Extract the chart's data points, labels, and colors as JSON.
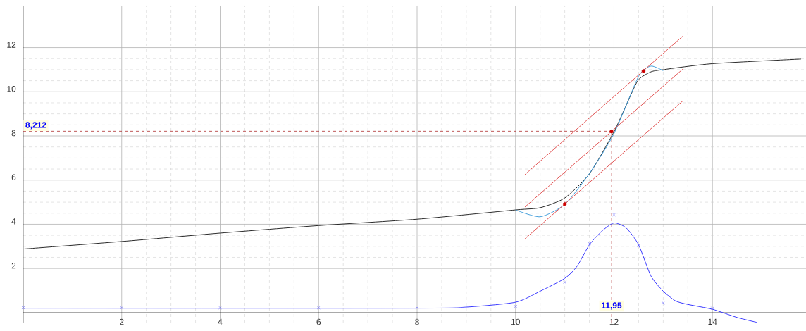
{
  "chart_data": {
    "type": "line",
    "xlim": [
      0,
      15.9
    ],
    "ylim": [
      -0.45,
      13.9
    ],
    "xticks": [
      2,
      4,
      6,
      8,
      10,
      12,
      14
    ],
    "yticks": [
      2,
      4,
      6,
      8,
      10,
      12
    ],
    "grid": true,
    "series": [
      {
        "color": "#1a1a1a",
        "marker": "none",
        "x": [
          0,
          2,
          4,
          6,
          8,
          10,
          10.5,
          11,
          11.5,
          12,
          12.33,
          12.5,
          12.75,
          13,
          14,
          15.8
        ],
        "values": [
          2.88,
          3.22,
          3.6,
          3.94,
          4.23,
          4.65,
          4.75,
          5.19,
          6.28,
          8.19,
          9.8,
          10.55,
          10.9,
          11.0,
          11.27,
          11.48
        ]
      },
      {
        "color": "#3a9ad9",
        "marker": "none",
        "x": [
          10,
          10.5,
          11,
          11.5,
          12,
          12.5,
          12.75,
          13
        ],
        "values": [
          4.65,
          4.34,
          4.9,
          6.3,
          8.1,
          10.7,
          11.16,
          10.95
        ]
      },
      {
        "color": "#2b2bff",
        "marker": "none",
        "x": [
          0,
          8,
          9,
          10,
          10.5,
          11,
          11.25,
          11.5,
          11.75,
          12,
          12.25,
          12.5,
          12.75,
          13,
          13.25,
          13.5,
          14,
          14.5,
          14.9
        ],
        "values": [
          0.2,
          0.2,
          0.25,
          0.47,
          0.97,
          1.55,
          2.1,
          3.07,
          3.68,
          4.06,
          3.83,
          3.07,
          1.66,
          0.97,
          0.53,
          0.37,
          0.15,
          -0.22,
          -0.44
        ]
      },
      {
        "type": "scatter",
        "color": "#5555ff",
        "marker": "cross",
        "x": [
          0,
          2,
          4,
          6,
          8,
          10,
          11,
          11.5,
          12,
          12.5,
          13,
          14
        ],
        "values": [
          0.22,
          0.22,
          0.22,
          0.22,
          0.22,
          0.28,
          1.37,
          3.13,
          4.43,
          3.04,
          0.44,
          0.2
        ]
      },
      {
        "type": "line",
        "color": "#e04848",
        "marker": "none",
        "x": [
          10.19,
          13.4
        ],
        "values": [
          6.25,
          12.52
        ]
      },
      {
        "type": "line",
        "color": "#e04848",
        "marker": "none",
        "x": [
          10.19,
          13.4
        ],
        "values": [
          4.78,
          11.03
        ]
      },
      {
        "type": "line",
        "color": "#e04848",
        "marker": "none",
        "x": [
          10.19,
          13.4
        ],
        "values": [
          3.34,
          9.59
        ]
      },
      {
        "type": "scatter",
        "color": "#cc0000",
        "marker": "circle",
        "x": [
          11,
          11.95,
          12.6
        ],
        "values": [
          4.92,
          8.2,
          10.94
        ]
      }
    ],
    "ref_lines": [
      {
        "axis": "y",
        "value": 8.212,
        "label": "8,212",
        "color": "#b03030",
        "line_style": "dashed"
      },
      {
        "axis": "x",
        "value": 11.95,
        "label": "11,95",
        "color": "#b03030",
        "line_style": "dashed"
      }
    ]
  }
}
